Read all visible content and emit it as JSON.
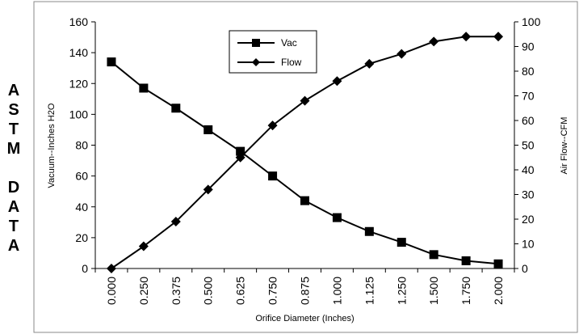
{
  "side_label": [
    "A",
    "S",
    "T",
    "M",
    "",
    "D",
    "A",
    "T",
    "A"
  ],
  "chart_data": {
    "type": "line",
    "categories": [
      "0.000",
      "0.250",
      "0.375",
      "0.500",
      "0.625",
      "0.750",
      "0.875",
      "1.000",
      "1.125",
      "1.250",
      "1.500",
      "1.750",
      "2.000"
    ],
    "xlabel": "Orifice Diameter (Inches)",
    "ylabel_left": "Vacuum--Inches H2O",
    "ylabel_right": "Air Flow--CFM",
    "ylim_left": [
      0,
      160
    ],
    "yticks_left": [
      0,
      20,
      40,
      60,
      80,
      100,
      120,
      140,
      160
    ],
    "ylim_right": [
      0,
      100
    ],
    "yticks_right": [
      0,
      10,
      20,
      30,
      40,
      50,
      60,
      70,
      80,
      90,
      100
    ],
    "grid": false,
    "legend_position": "top-center",
    "series": [
      {
        "name": "Vac",
        "axis": "left",
        "marker": "square",
        "color": "#000000",
        "values": [
          134,
          117,
          104,
          90,
          76,
          60,
          44,
          33,
          24,
          17,
          9,
          5,
          3
        ]
      },
      {
        "name": "Flow",
        "axis": "right",
        "marker": "diamond",
        "color": "#000000",
        "values": [
          0,
          9,
          19,
          32,
          45,
          58,
          68,
          76,
          83,
          87,
          92,
          94,
          94
        ]
      }
    ]
  }
}
